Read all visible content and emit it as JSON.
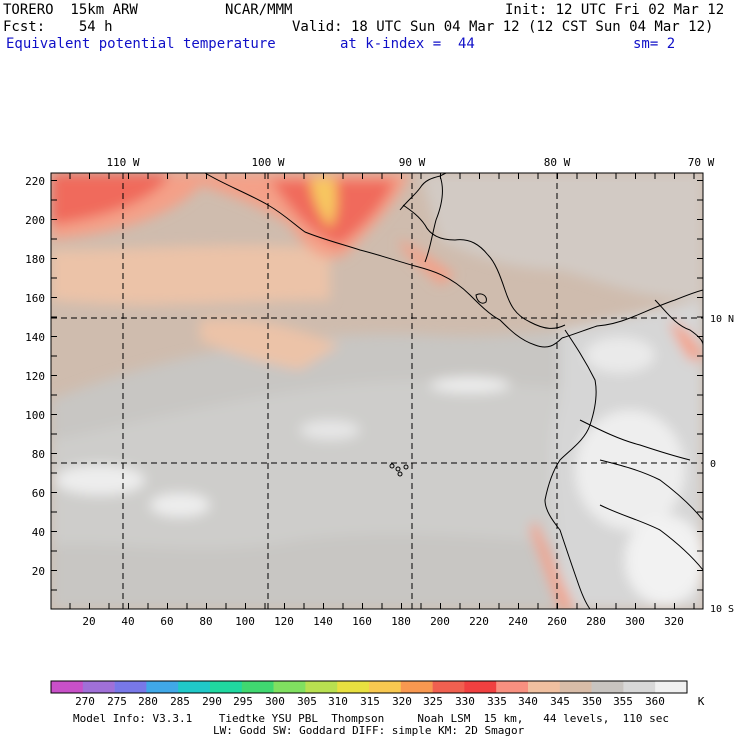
{
  "header": {
    "line1_left": "TORERO  15km ARW",
    "line1_mid": "NCAR/MMM",
    "line1_right": "Init: 12 UTC Fri 02 Mar 12",
    "line2_left": "Fcst:    54 h",
    "line2_right": "Valid: 18 UTC Sun 04 Mar 12 (12 CST Sun 04 Mar 12)",
    "line3_field": "Equivalent potential temperature",
    "line3_level": "at k-index =  44",
    "line3_sm": "sm= 2"
  },
  "map": {
    "lon_labels": [
      "110 W",
      "100 W",
      "90 W",
      "80 W",
      "70 W"
    ],
    "lat_labels": [
      "10 N",
      "0",
      "10 S"
    ],
    "x_ticks": [
      "20",
      "40",
      "60",
      "80",
      "100",
      "120",
      "140",
      "160",
      "180",
      "200",
      "220",
      "240",
      "260",
      "280",
      "300",
      "320"
    ],
    "y_ticks": [
      "220",
      "200",
      "180",
      "160",
      "140",
      "120",
      "100",
      "80",
      "60",
      "40",
      "20"
    ]
  },
  "colorbar": {
    "unit": "K",
    "labels": [
      "270",
      "275",
      "280",
      "285",
      "290",
      "295",
      "300",
      "305",
      "310",
      "315",
      "320",
      "325",
      "330",
      "335",
      "340",
      "345",
      "350",
      "355",
      "360"
    ],
    "colors": [
      "#c850c8",
      "#a070d8",
      "#7878e8",
      "#40a8e8",
      "#20c8c8",
      "#20d8a0",
      "#40d870",
      "#80e060",
      "#b8e050",
      "#e8e040",
      "#f8c850",
      "#f89850",
      "#f06050",
      "#f04040",
      "#f89080",
      "#f0c0a0",
      "#d8bca8",
      "#c8c4c0",
      "#d8d8d8",
      "#f0f0f0"
    ]
  },
  "footer": {
    "line1": "Model Info: V3.3.1    Tiedtke YSU PBL  Thompson     Noah LSM  15 km,   44 levels,  110 sec",
    "line2": "LW: Godd SW: Goddard DIFF: simple KM: 2D Smagor"
  }
}
